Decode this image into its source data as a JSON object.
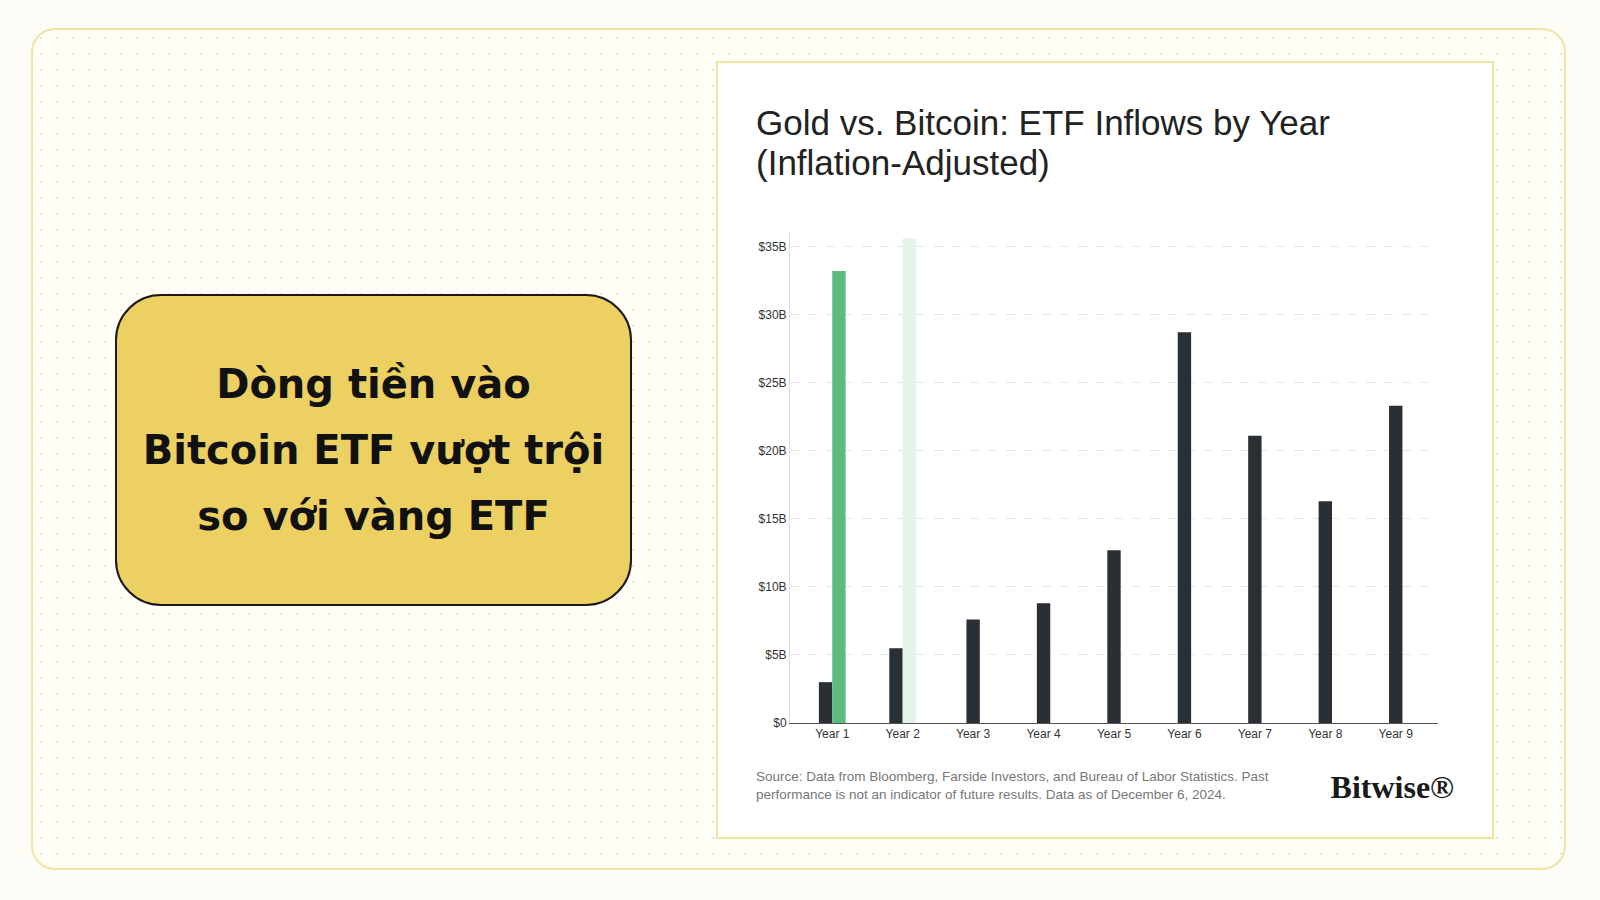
{
  "slide": {
    "headline": "Dòng tiền vào Bitcoin ETF vượt trội so với vàng ETF",
    "source": "Source: Data from Bloomberg, Farside Investors, and Bureau of Labor Statistics. Past performance is not an indicator of future results. Data as of December 6, 2024.",
    "logo": "Bitwise®"
  },
  "chart_data": {
    "type": "bar",
    "title": "Gold vs. Bitcoin: ETF Inflows by Year (Inflation-Adjusted)",
    "categories": [
      "Year 1",
      "Year 2",
      "Year 3",
      "Year 4",
      "Year 5",
      "Year 6",
      "Year 7",
      "Year 8",
      "Year 9"
    ],
    "series": [
      {
        "color": "#2a2e35",
        "values": [
          3.0,
          5.5,
          7.6,
          8.8,
          12.7,
          28.7,
          21.1,
          16.3,
          23.3
        ]
      },
      {
        "colors": [
          "#5dbb7e",
          "#e3f3e8",
          "#5dbb7e",
          "#5dbb7e",
          "#5dbb7e",
          "#5dbb7e",
          "#5dbb7e",
          "#5dbb7e",
          "#5dbb7e"
        ],
        "values": [
          33.2,
          35.6,
          null,
          null,
          null,
          null,
          null,
          null,
          null
        ]
      }
    ],
    "ylim": [
      0,
      36
    ],
    "yticks": [
      {
        "value": 0,
        "label": "$0"
      },
      {
        "value": 5,
        "label": "$5B"
      },
      {
        "value": 10,
        "label": "$10B"
      },
      {
        "value": 15,
        "label": "$15B"
      },
      {
        "value": 20,
        "label": "$20B"
      },
      {
        "value": 25,
        "label": "$25B"
      },
      {
        "value": 30,
        "label": "$30B"
      },
      {
        "value": 35,
        "label": "$35B"
      }
    ],
    "grid": true
  }
}
